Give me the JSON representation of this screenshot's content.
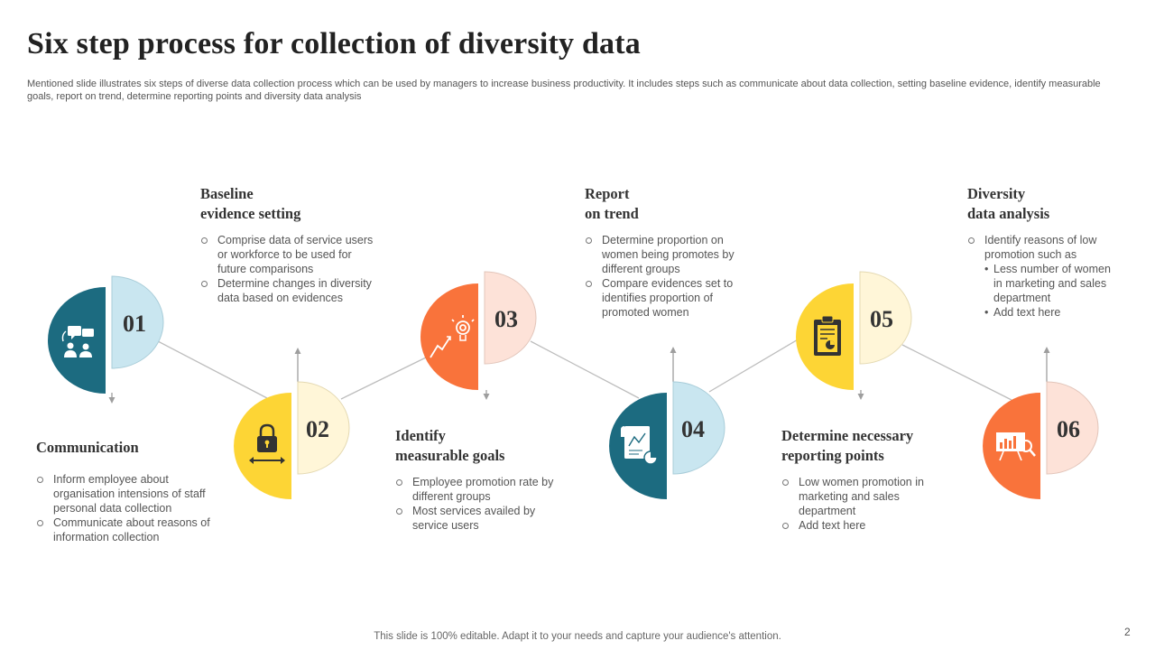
{
  "slide": {
    "title": "Six step process for collection of diversity data",
    "subtitle": "Mentioned slide illustrates six steps of diverse data collection process which can be used by managers to increase business productivity. It includes steps such as communicate about data collection, setting baseline evidence, identify measurable goals, report on trend, determine reporting points and diversity data analysis",
    "footer": "This slide is 100% editable. Adapt it to your needs and capture your audience's attention.",
    "page_number": "2"
  },
  "colors": {
    "teal": "#1C6B80",
    "light_blue": "#C9E6F0",
    "yellow": "#FDD535",
    "light_yellow": "#FFF6D8",
    "orange": "#F9733B",
    "peach": "#FDE2D8",
    "text": "#333333"
  },
  "steps": [
    {
      "number": "01",
      "title_line1": "Communication",
      "title_line2": "",
      "icon": "team-communication-icon",
      "bullets": [
        "Inform employee about organisation intensions of staff personal data collection",
        "Communicate about reasons of information collection"
      ]
    },
    {
      "number": "02",
      "title_line1": "Baseline",
      "title_line2": "evidence setting",
      "icon": "locked-evidence-icon",
      "bullets": [
        "Comprise data of service users or workforce to be used for future comparisons",
        "Determine changes in diversity data based on evidences"
      ]
    },
    {
      "number": "03",
      "title_line1": "Identify",
      "title_line2": "measurable goals",
      "icon": "goal-growth-icon",
      "bullets": [
        "Employee promotion rate by different groups",
        "Most services availed by service users"
      ]
    },
    {
      "number": "04",
      "title_line1": "Report",
      "title_line2": "on trend",
      "icon": "report-document-icon",
      "bullets": [
        "Determine proportion on women being promotes by different groups",
        "Compare evidences set to identifies proportion of promoted women"
      ]
    },
    {
      "number": "05",
      "title_line1": "Determine necessary",
      "title_line2": "reporting points",
      "icon": "clipboard-chart-icon",
      "bullets": [
        "Low women promotion in marketing and sales department",
        "Add text here"
      ]
    },
    {
      "number": "06",
      "title_line1": "Diversity",
      "title_line2": "data analysis",
      "icon": "data-analysis-presentation-icon",
      "bullets": [
        "Identify reasons of low promotion such as"
      ],
      "sub_bullets": [
        "Less number of women in marketing and sales department",
        "Add text here"
      ]
    }
  ]
}
